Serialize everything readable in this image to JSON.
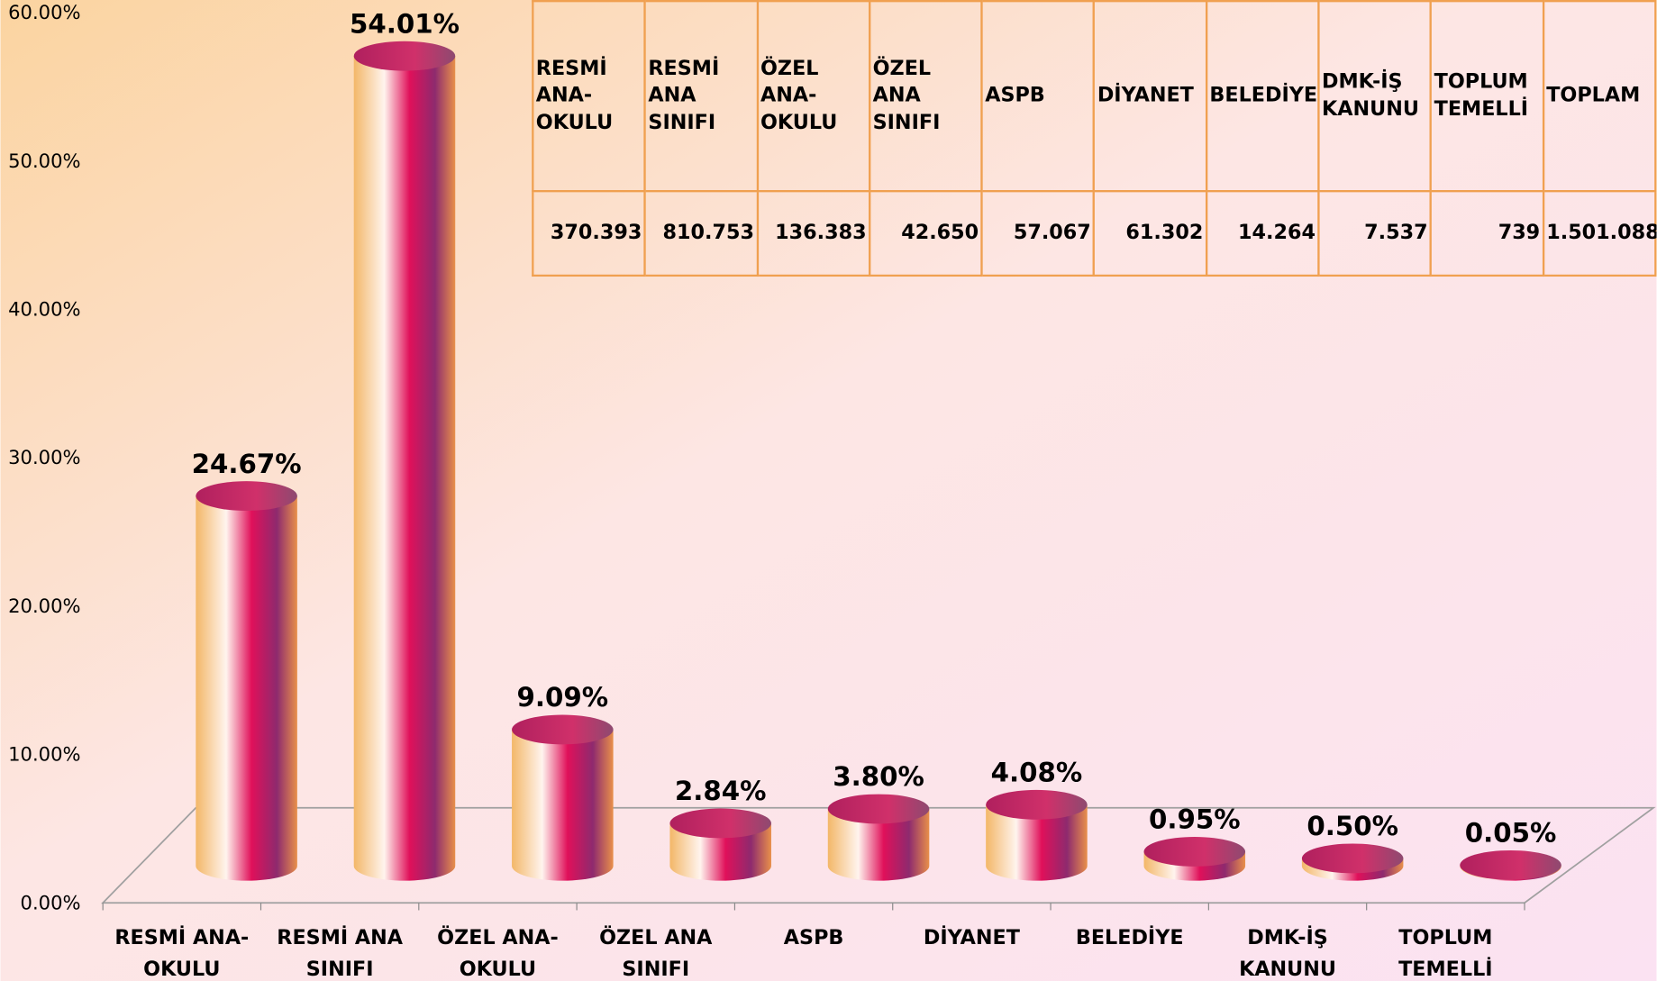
{
  "chart_data": {
    "type": "bar3d",
    "categories": [
      [
        "RESMİ ANA-",
        "OKULU"
      ],
      [
        "RESMİ ANA",
        "SINIFI"
      ],
      [
        "ÖZEL ANA-",
        "OKULU"
      ],
      [
        "ÖZEL ANA",
        "SINIFI"
      ],
      [
        "ASPB"
      ],
      [
        "DİYANET"
      ],
      [
        "BELEDİYE"
      ],
      [
        "DMK-İŞ",
        "KANUNU"
      ],
      [
        "TOPLUM",
        "TEMELLİ"
      ]
    ],
    "values": [
      24.67,
      54.01,
      9.09,
      2.84,
      3.8,
      4.08,
      0.95,
      0.5,
      0.05
    ],
    "value_labels": [
      "24.67%",
      "54.01%",
      "9.09%",
      "2.84%",
      "3.80%",
      "4.08%",
      "0.95%",
      "0.50%",
      "0.05%"
    ],
    "ylim": [
      0,
      60
    ],
    "yticks": [
      {
        "value": 0,
        "label": "0.00%"
      },
      {
        "value": 10,
        "label": "10.00%"
      },
      {
        "value": 20,
        "label": "20.00%"
      },
      {
        "value": 30,
        "label": "30.00%"
      },
      {
        "value": 40,
        "label": "40.00%"
      },
      {
        "value": 50,
        "label": "50.00%"
      },
      {
        "value": 60,
        "label": "60.00%"
      }
    ],
    "colors": [
      "#f3b768",
      "#fff4ee",
      "#e0105a",
      "#8e2a6e",
      "#e8904a"
    ]
  },
  "table": {
    "headers": [
      "RESMİ ANA-OKULU",
      "RESMİ ANA SINIFI",
      "ÖZEL ANA-OKULU",
      "ÖZEL ANA SINIFI",
      "ASPB",
      "DİYANET",
      "BELEDİYE",
      "DMK-İŞ KANUNU",
      "TOPLUM TEMELLİ",
      "TOPLAM"
    ],
    "values": [
      "370.393",
      "810.753",
      "136.383",
      "42.650",
      "57.067",
      "61.302",
      "14.264",
      "7.537",
      "739",
      "1.501.088"
    ]
  }
}
